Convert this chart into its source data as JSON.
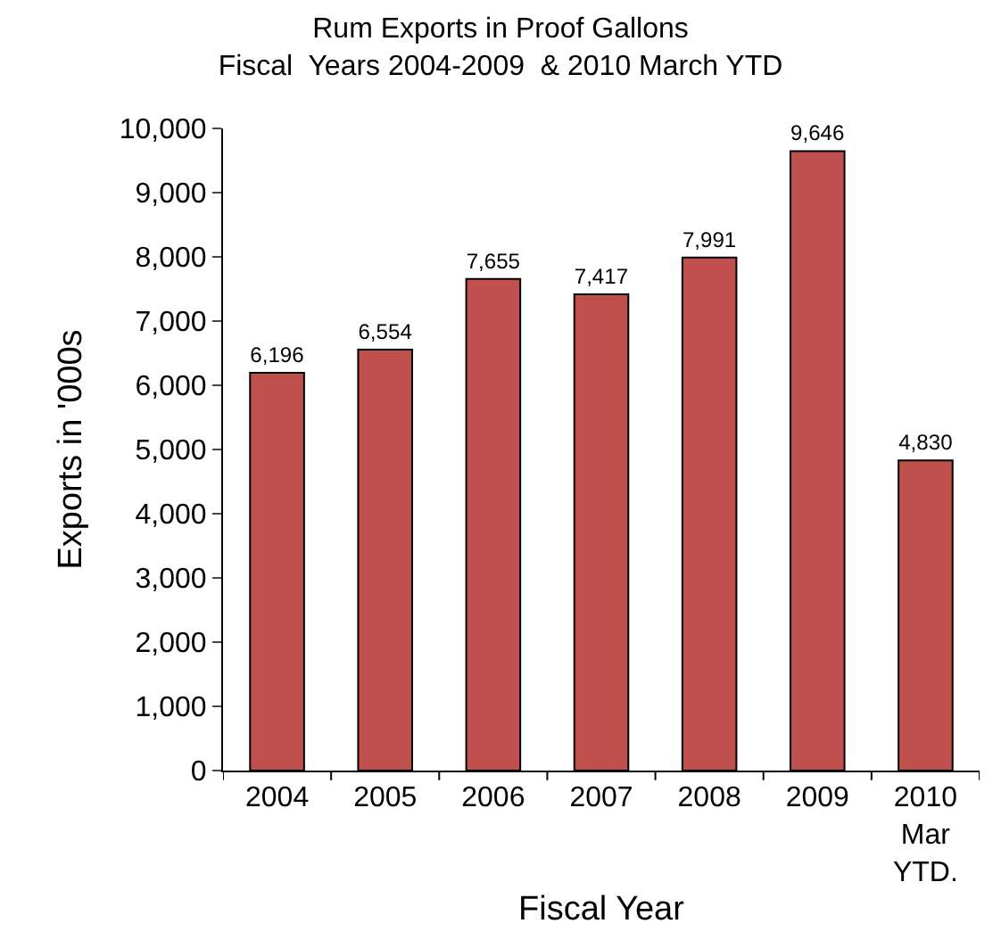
{
  "chart_data": {
    "type": "bar",
    "title": "Rum Exports in Proof Gallons\nFiscal  Years 2004-2009  & 2010 March YTD",
    "xlabel": "Fiscal Year",
    "ylabel": "Exports in '000s",
    "categories": [
      "2004",
      "2005",
      "2006",
      "2007",
      "2008",
      "2009",
      "2010\nMar\nYTD."
    ],
    "values": [
      6196,
      6554,
      7655,
      7417,
      7991,
      9646,
      4830
    ],
    "color": "#c0504d",
    "ylim": [
      0,
      10000
    ],
    "yticks": [
      {
        "value": 0,
        "label": "0"
      },
      {
        "value": 1000,
        "label": "1,000"
      },
      {
        "value": 2000,
        "label": "2,000"
      },
      {
        "value": 3000,
        "label": "3,000"
      },
      {
        "value": 4000,
        "label": "4,000"
      },
      {
        "value": 5000,
        "label": "5,000"
      },
      {
        "value": 6000,
        "label": "6,000"
      },
      {
        "value": 7000,
        "label": "7,000"
      },
      {
        "value": 8000,
        "label": "8,000"
      },
      {
        "value": 9000,
        "label": "9,000"
      },
      {
        "value": 10000,
        "label": "10,000"
      }
    ],
    "value_labels": [
      "6,196",
      "6,554",
      "7,655",
      "7,417",
      "7,991",
      "9,646",
      "4,830"
    ],
    "legend": false
  }
}
